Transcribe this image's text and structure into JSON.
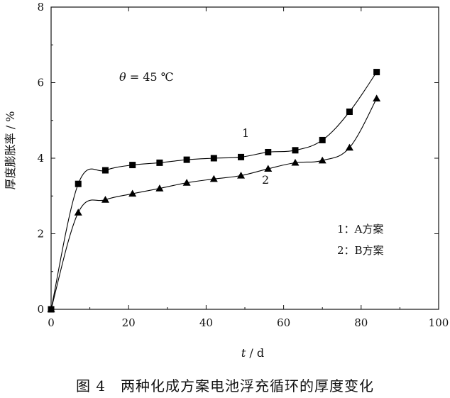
{
  "caption": "图 4　两种化成方案电池浮充循环的厚度变化",
  "chart_data": {
    "type": "line",
    "xlabel": "t / d",
    "ylabel": "厚度膨胀率 / %",
    "xlim": [
      0,
      100
    ],
    "ylim": [
      0,
      8
    ],
    "xticks": [
      0,
      20,
      40,
      60,
      80,
      100
    ],
    "yticks": [
      0,
      2,
      4,
      6,
      8
    ],
    "grid": false,
    "annotation": "θ = 45 ℃",
    "legend_lines": [
      "1：A方案",
      "2：B方案"
    ],
    "legend_position": "bottom-right",
    "series": [
      {
        "name": "1",
        "marker": "square",
        "color": "#000000",
        "x": [
          0,
          7,
          14,
          21,
          28,
          35,
          42,
          49,
          56,
          63,
          70,
          77,
          84
        ],
        "y": [
          0,
          3.32,
          3.68,
          3.82,
          3.88,
          3.96,
          4.0,
          4.03,
          4.16,
          4.21,
          4.48,
          5.23,
          6.28
        ]
      },
      {
        "name": "2",
        "marker": "triangle",
        "color": "#000000",
        "x": [
          0,
          7,
          14,
          21,
          28,
          35,
          42,
          49,
          56,
          63,
          70,
          77,
          84
        ],
        "y": [
          0,
          2.56,
          2.9,
          3.06,
          3.2,
          3.35,
          3.45,
          3.54,
          3.72,
          3.88,
          3.94,
          4.28,
          5.58
        ]
      }
    ]
  }
}
